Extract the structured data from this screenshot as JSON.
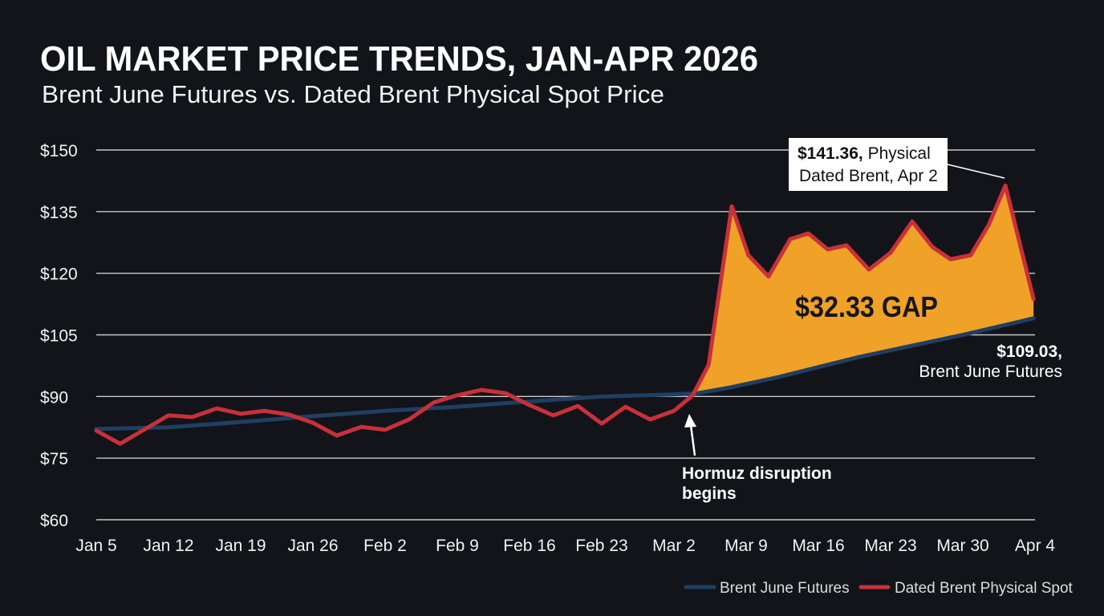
{
  "chart_data": {
    "type": "line",
    "title": "OIL MARKET PRICE TRENDS, JAN-APR 2026",
    "subtitle": "Brent June Futures vs. Dated Brent Physical Spot Price",
    "xlabel": "",
    "ylabel": "",
    "x_units": "tick index (weekly ticks, Jan 5 = 0)",
    "x_ticks": [
      "Jan 5",
      "Jan 12",
      "Jan 19",
      "Jan 26",
      "Feb 2",
      "Feb 9",
      "Feb 16",
      "Feb 23",
      "Mar 2",
      "Mar 9",
      "Mar 16",
      "Mar 23",
      "Mar 30",
      "Apr 4"
    ],
    "y_ticks": [
      "$60",
      "$75",
      "$90",
      "$105",
      "$120",
      "$135",
      "$150"
    ],
    "y_tick_values": [
      60,
      75,
      90,
      105,
      120,
      135,
      150
    ],
    "ylim": [
      60,
      150
    ],
    "grid": true,
    "legend_position": "bottom-right",
    "series": [
      {
        "name": "Brent June Futures",
        "color": "#1f3f63",
        "x": [
          0,
          1,
          2,
          3,
          4,
          5,
          6,
          7,
          8,
          8.33,
          8.78,
          9.44,
          10.56,
          12.03,
          12.98
        ],
        "y": [
          82.1,
          82.5,
          83.8,
          85.2,
          86.5,
          87.5,
          88.8,
          90.0,
          90.5,
          90.8,
          92.2,
          94.7,
          99.6,
          105.1,
          109.03
        ]
      },
      {
        "name": "Dated Brent Physical Spot",
        "color": "#c8303a",
        "x": [
          0,
          0.33,
          1.0,
          1.33,
          1.67,
          2.0,
          2.33,
          2.67,
          3.0,
          3.33,
          3.67,
          4.0,
          4.33,
          4.67,
          5.0,
          5.33,
          5.67,
          6.0,
          6.33,
          6.67,
          7.0,
          7.33,
          7.67,
          8.0,
          8.26,
          8.48,
          8.8,
          9.03,
          9.31,
          9.61,
          9.86,
          10.13,
          10.39,
          10.7,
          11.0,
          11.3,
          11.58,
          11.83,
          12.11,
          12.36,
          12.59,
          12.98
        ],
        "y": [
          81.7,
          78.5,
          85.4,
          85.0,
          87.1,
          85.8,
          86.5,
          85.6,
          83.6,
          80.5,
          82.6,
          81.9,
          84.4,
          88.5,
          90.3,
          91.6,
          90.8,
          87.9,
          85.4,
          87.7,
          83.4,
          87.5,
          84.4,
          86.5,
          90.3,
          97.7,
          136.3,
          124.4,
          119.2,
          128.3,
          129.7,
          125.8,
          126.8,
          120.9,
          125.0,
          132.6,
          126.4,
          123.4,
          124.4,
          131.8,
          141.36,
          113.7
        ]
      }
    ],
    "gap_fill_color": "#f0a127",
    "annotations": {
      "peak_value": "$141.36,",
      "peak_text1": " Physical",
      "peak_text2": "Dated Brent, Apr 2",
      "gap": "$32.33 GAP",
      "futures_value": "$109.03,",
      "futures_text": "Brent June Futures",
      "event_line1": "Hormuz disruption",
      "event_line2": "begins"
    }
  }
}
